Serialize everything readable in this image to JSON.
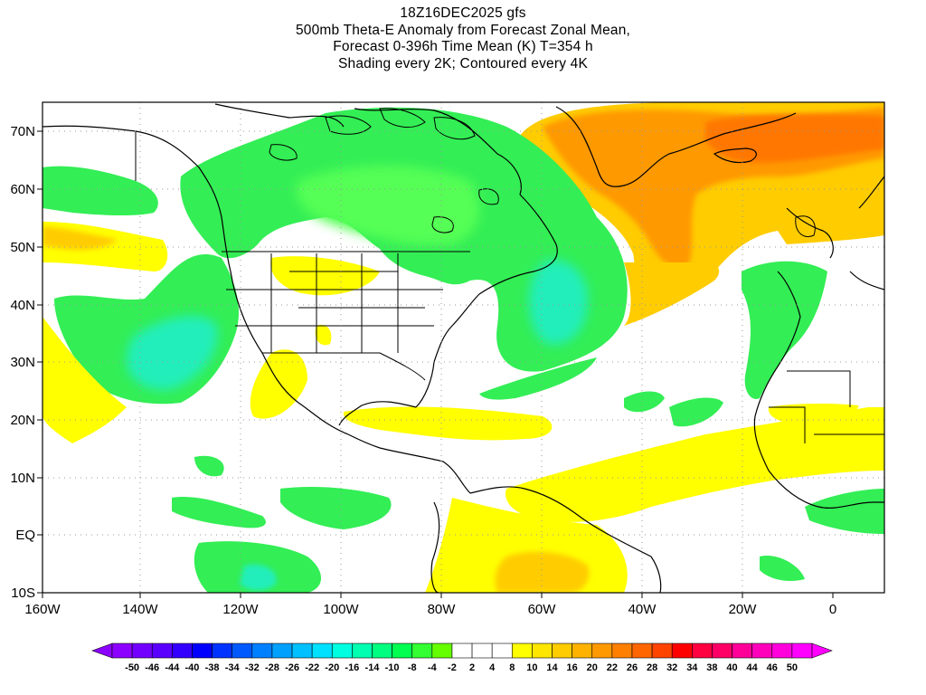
{
  "title": {
    "lines": [
      "18Z16DEC2025 gfs",
      "500mb Theta-E Anomaly from Forecast Zonal Mean,",
      "Forecast 0-396h Time Mean (K) T=354 h",
      "Shading every 2K; Contoured every 4K"
    ]
  },
  "axes": {
    "lat_labels": [
      "70N",
      "60N",
      "50N",
      "40N",
      "30N",
      "20N",
      "10N",
      "EQ",
      "10S"
    ],
    "lon_labels": [
      "160W",
      "140W",
      "120W",
      "100W",
      "80W",
      "60W",
      "40W",
      "20W",
      "0"
    ]
  },
  "colorbar": {
    "labels": [
      "-50",
      "-46",
      "-44",
      "-40",
      "-38",
      "-34",
      "-32",
      "-28",
      "-26",
      "-22",
      "-20",
      "-16",
      "-14",
      "-10",
      "-8",
      "-4",
      "-2",
      "2",
      "4",
      "8",
      "10",
      "14",
      "16",
      "20",
      "22",
      "26",
      "28",
      "32",
      "34",
      "38",
      "40",
      "44",
      "46",
      "50"
    ],
    "colors": [
      "#8c00ff",
      "#7300ff",
      "#5a00ff",
      "#3300ff",
      "#0000ff",
      "#0033ff",
      "#0059ff",
      "#0080ff",
      "#00a0ff",
      "#00c0ff",
      "#00e0ff",
      "#00ffe0",
      "#00ffb0",
      "#00ff80",
      "#00ff50",
      "#33ff33",
      "#66ff00",
      "#ffffff",
      "#ffffff",
      "#ffffff",
      "#ffff00",
      "#ffe600",
      "#ffcc00",
      "#ffb300",
      "#ff9900",
      "#ff8000",
      "#ff6600",
      "#ff4400",
      "#ff0000",
      "#ff0040",
      "#ff0066",
      "#ff0099",
      "#ff00bb",
      "#ff00dd",
      "#ff00ff"
    ]
  },
  "colors": {
    "green": "#33ee55",
    "light_green": "#66ff33",
    "cyan": "#22eebb",
    "yellow": "#ffff00",
    "light_orange": "#ffcc00",
    "orange": "#ff9900",
    "dark_orange": "#ff7700",
    "coastline": "#000000"
  }
}
